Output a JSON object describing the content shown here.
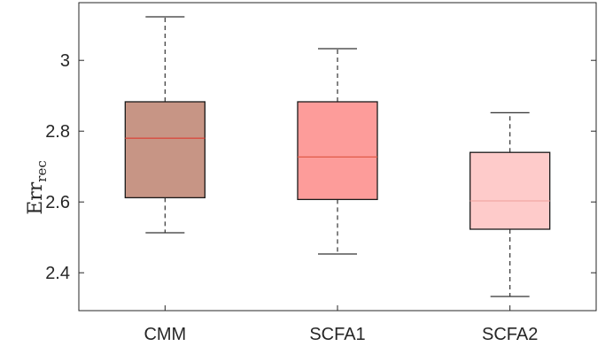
{
  "chart_data": {
    "type": "boxplot",
    "categories": [
      "CMM",
      "SCFA1",
      "SCFA2"
    ],
    "boxes": [
      {
        "name": "CMM",
        "whisker_low": 2.513,
        "q1": 2.612,
        "median": 2.78,
        "q3": 2.883,
        "whisker_high": 3.123,
        "fill": "#c79585",
        "median_color": "#d94b3f"
      },
      {
        "name": "SCFA1",
        "whisker_low": 2.453,
        "q1": 2.607,
        "median": 2.727,
        "q3": 2.883,
        "whisker_high": 3.033,
        "fill": "#fd9c9a",
        "median_color": "#e05a48"
      },
      {
        "name": "SCFA2",
        "whisker_low": 2.333,
        "q1": 2.523,
        "median": 2.603,
        "q3": 2.74,
        "whisker_high": 2.852,
        "fill": "#fecbca",
        "median_color": "#f2a8a5"
      }
    ],
    "ylabel": "Err",
    "ylabel_subscript": "rec",
    "xlabel": "",
    "title": "",
    "ylim": [
      2.293,
      3.163
    ],
    "yticks": [
      2.4,
      2.6,
      2.8,
      3.0
    ],
    "ytick_labels": [
      "2.4",
      "2.6",
      "2.8",
      "3"
    ],
    "grid": false,
    "axis_color": "#262626"
  }
}
